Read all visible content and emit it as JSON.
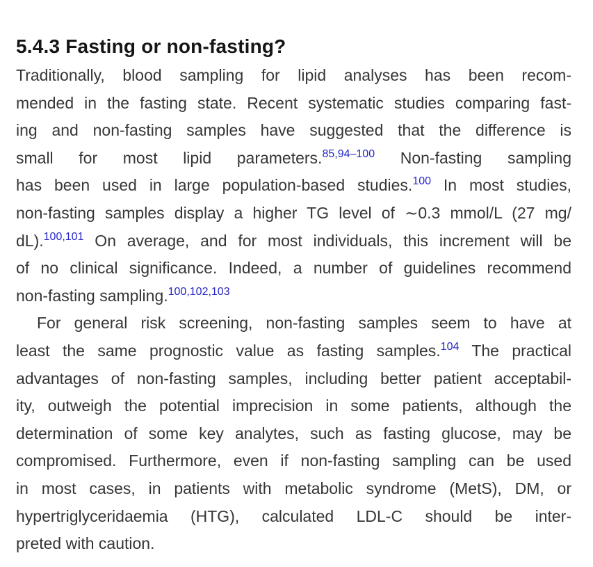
{
  "page": {
    "background_color": "#ffffff",
    "text_color": "#363636",
    "heading_color": "#151515",
    "reference_link_color": "#2525c8"
  },
  "section": {
    "heading": "5.4.3 Fasting or non-fasting?",
    "paragraphs": [
      {
        "lines": [
          {
            "indent": false,
            "last": false,
            "runs": [
              {
                "t": "Traditionally, blood sampling for lipid analyses has been recom-"
              }
            ]
          },
          {
            "indent": false,
            "last": false,
            "runs": [
              {
                "t": "mended in the fasting state. Recent systematic studies comparing fast-"
              }
            ]
          },
          {
            "indent": false,
            "last": false,
            "runs": [
              {
                "t": "ing and non-fasting samples have suggested that the difference is"
              }
            ]
          },
          {
            "indent": false,
            "last": false,
            "runs": [
              {
                "t": "small for most lipid parameters."
              },
              {
                "t": "85,94–100",
                "sup": true
              },
              {
                "t": " Non-fasting sampling"
              }
            ]
          },
          {
            "indent": false,
            "last": false,
            "runs": [
              {
                "t": "has been used in large population-based studies."
              },
              {
                "t": "100",
                "sup": true
              },
              {
                "t": " In most studies,"
              }
            ]
          },
          {
            "indent": false,
            "last": false,
            "runs": [
              {
                "t": "non-fasting samples display a higher TG level of ∼0.3 mmol/L (27 mg/"
              }
            ]
          },
          {
            "indent": false,
            "last": false,
            "runs": [
              {
                "t": "dL)."
              },
              {
                "t": "100,101",
                "sup": true
              },
              {
                "t": " On average, and for most individuals, this increment will be"
              }
            ]
          },
          {
            "indent": false,
            "last": false,
            "runs": [
              {
                "t": "of no clinical significance. Indeed, a number of guidelines recommend"
              }
            ]
          },
          {
            "indent": false,
            "last": true,
            "runs": [
              {
                "t": "non-fasting sampling."
              },
              {
                "t": "100,102,103",
                "sup": true
              }
            ]
          }
        ]
      },
      {
        "lines": [
          {
            "indent": true,
            "last": false,
            "runs": [
              {
                "t": "For general risk screening, non-fasting samples seem to have at"
              }
            ]
          },
          {
            "indent": false,
            "last": false,
            "runs": [
              {
                "t": "least the same prognostic value as fasting samples."
              },
              {
                "t": "104",
                "sup": true
              },
              {
                "t": " The practical"
              }
            ]
          },
          {
            "indent": false,
            "last": false,
            "runs": [
              {
                "t": "advantages of non-fasting samples, including better patient acceptabil-"
              }
            ]
          },
          {
            "indent": false,
            "last": false,
            "runs": [
              {
                "t": "ity, outweigh the potential imprecision in some patients, although the"
              }
            ]
          },
          {
            "indent": false,
            "last": false,
            "runs": [
              {
                "t": "determination of some key analytes, such as fasting glucose, may be"
              }
            ]
          },
          {
            "indent": false,
            "last": false,
            "runs": [
              {
                "t": "compromised. Furthermore, even if non-fasting sampling can be used"
              }
            ]
          },
          {
            "indent": false,
            "last": false,
            "runs": [
              {
                "t": "in most cases, in patients with metabolic syndrome (MetS), DM, or"
              }
            ]
          },
          {
            "indent": false,
            "last": false,
            "runs": [
              {
                "t": "hypertriglyceridaemia (HTG), calculated LDL-C should be inter-"
              }
            ]
          },
          {
            "indent": false,
            "last": true,
            "runs": [
              {
                "t": "preted with caution."
              }
            ]
          }
        ]
      }
    ]
  }
}
